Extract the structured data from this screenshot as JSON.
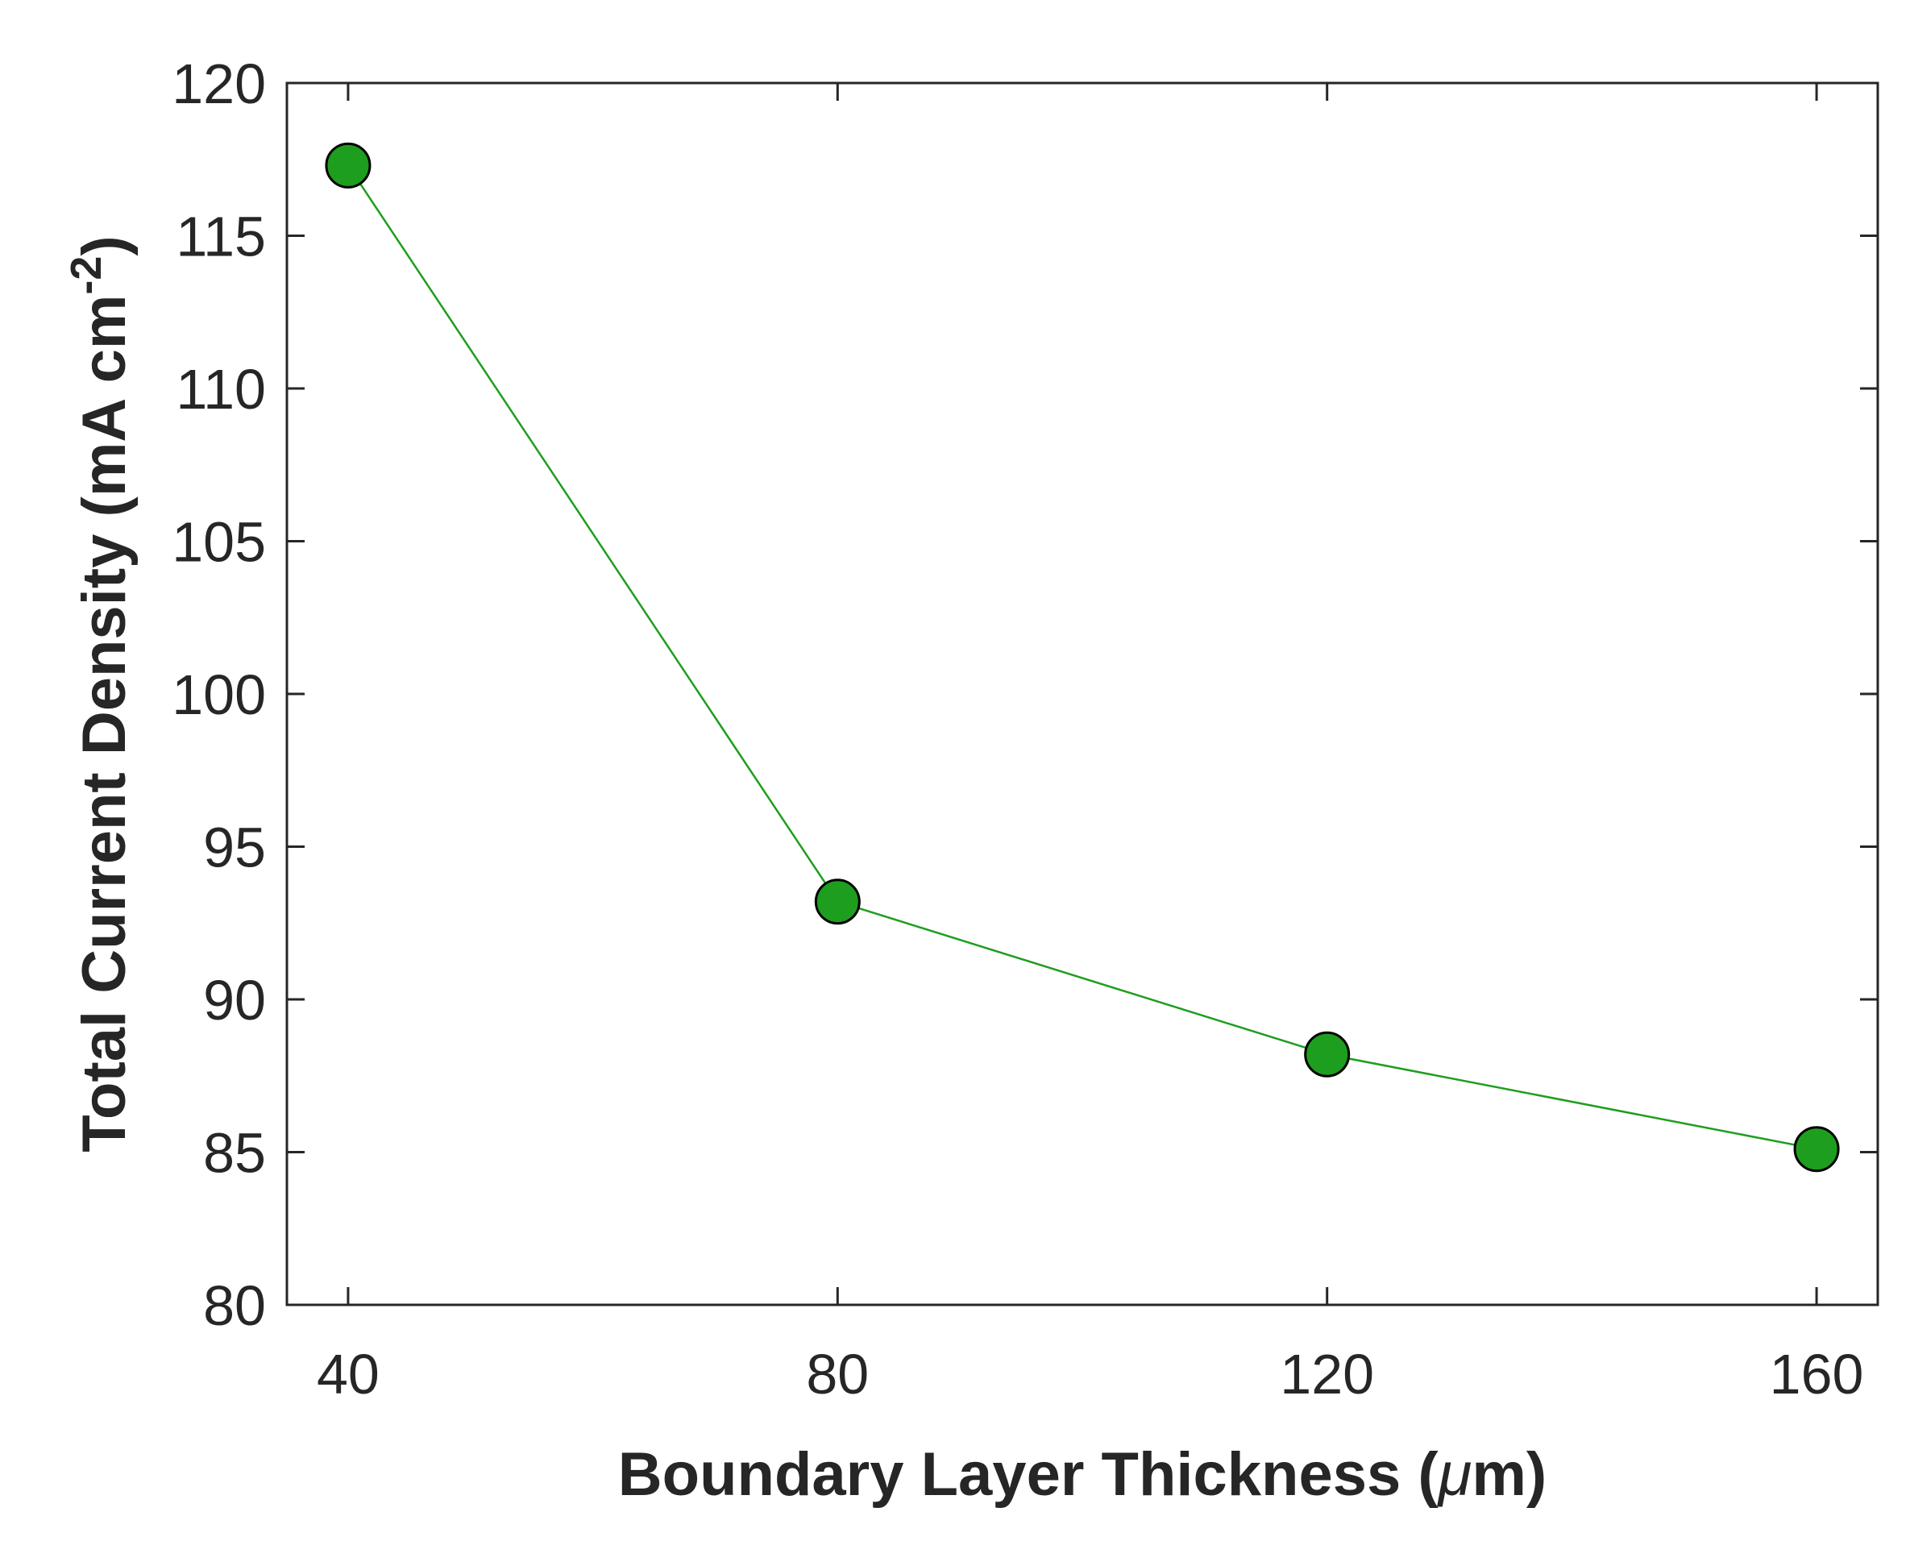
{
  "chart_data": {
    "type": "line",
    "title": "",
    "xlabel": {
      "text": "Boundary Layer Thickness (",
      "symbol": "μ",
      "suffix": "m)"
    },
    "ylabel": {
      "text": "Total Current Density (mA cm",
      "superscript": "-2",
      "suffix": ")"
    },
    "x": [
      40,
      80,
      120,
      160
    ],
    "series": [
      {
        "values": [
          117.3,
          93.2,
          88.2,
          85.1
        ],
        "color": "#1e9e1e",
        "marker": "circle"
      }
    ],
    "xlim": [
      35,
      165
    ],
    "ylim": [
      80,
      120
    ],
    "xticks": [
      "40",
      "80",
      "120",
      "160"
    ],
    "yticks": [
      "80",
      "85",
      "90",
      "95",
      "100",
      "105",
      "110",
      "115",
      "120"
    ],
    "grid": false,
    "box": true,
    "colors": {
      "axis": "#262626",
      "marker_fill": "#1e9e1e",
      "marker_edge": "#000000"
    }
  }
}
